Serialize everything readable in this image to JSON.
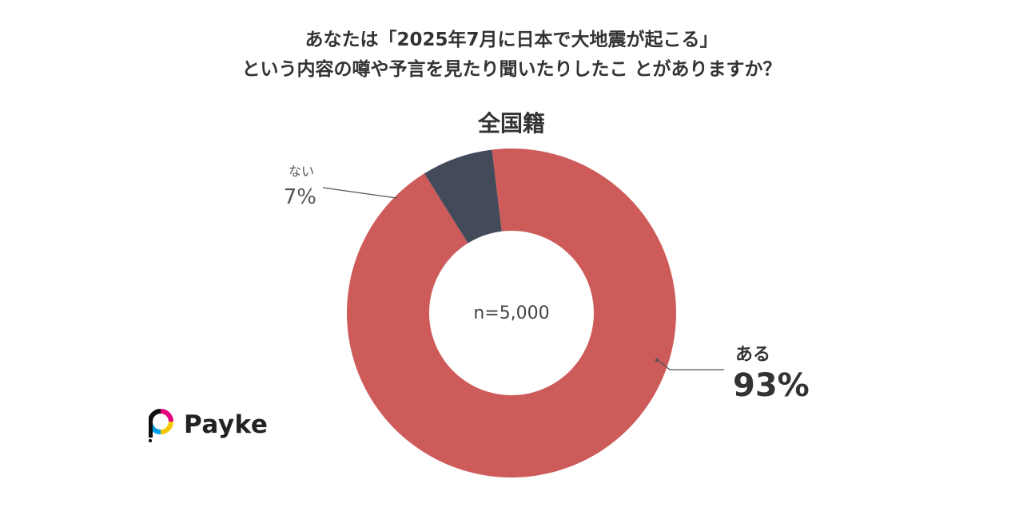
{
  "title_line1": "あなたは「2025年7月に日本で大地震が起こる」",
  "title_line2": "という内容の噂や予言を見たり聞いたりしたこ とがありますか？",
  "brand": "Payke",
  "colors": {
    "aru": "#cd5b59",
    "nai": "#434b5a",
    "text": "#333333",
    "leader": "#555555"
  },
  "chart_data": {
    "type": "pie",
    "variant": "donut",
    "title": "全国籍",
    "center_label": "n=5,000",
    "start_angle_deg": -32,
    "slices": [
      {
        "name": "ない",
        "value": 7,
        "label": "7%",
        "color": "#434b5a"
      },
      {
        "name": "ある",
        "value": 93,
        "label": "93%",
        "color": "#cd5b59"
      }
    ]
  }
}
